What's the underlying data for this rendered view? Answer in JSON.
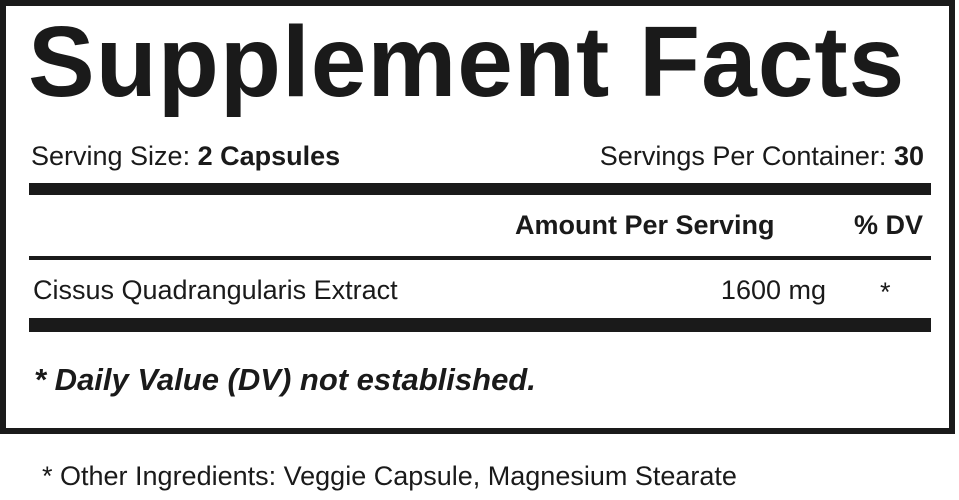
{
  "title": "Supplement Facts",
  "serving_size": {
    "label": "Serving Size:",
    "value": "2 Capsules"
  },
  "servings_per_container": {
    "label": "Servings Per Container:",
    "value": "30"
  },
  "table": {
    "headers": {
      "amount": "Amount Per Serving",
      "dv": "% DV"
    },
    "rows": [
      {
        "name": "Cissus Quadrangularis Extract",
        "amount": "1600 mg",
        "dv": "*"
      }
    ]
  },
  "footnote": "* Daily Value (DV) not established.",
  "other_ingredients": "* Other Ingredients: Veggie Capsule, Magnesium Stearate"
}
